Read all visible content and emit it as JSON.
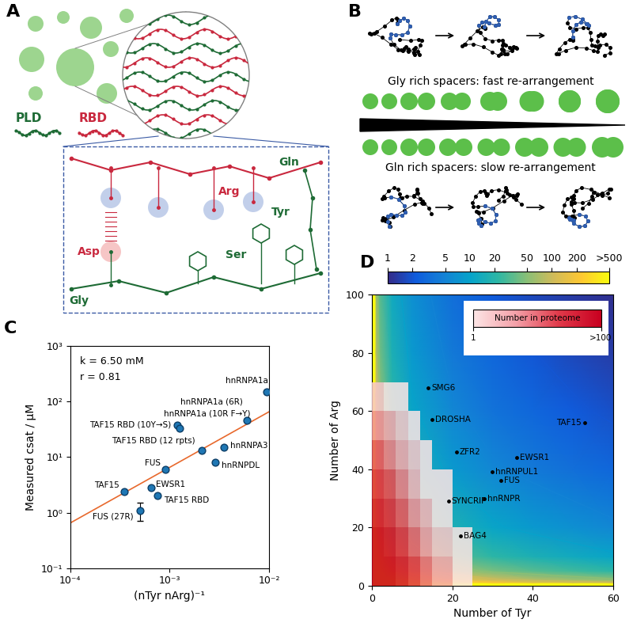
{
  "panels": {
    "A": {
      "label": "A",
      "pld": "PLD",
      "rbd": "RBD",
      "arg": "Arg",
      "tyr": "Tyr",
      "gln": "Gln",
      "asp": "Asp",
      "ser": "Ser",
      "gly": "Gly"
    },
    "B": {
      "label": "B",
      "fast": "Gly rich spacers: fast re-arrangement",
      "slow": "Gln rich spacers: slow re-arrangement"
    }
  },
  "chart_data": [
    {
      "label": "C",
      "type": "scatter",
      "log": true,
      "xlabel": "(nTyr nArg)⁻¹",
      "ylabel": "Measured csat / μM",
      "annotations": [
        "k = 6.50 mM",
        "r = 0.81"
      ],
      "names": [
        "hnRNPA1a",
        "hnRNPA1a (6R)",
        "hnRNPA3",
        "hnRNPDL",
        "TAF15 RBD (12 rpts)",
        "TAF15 RBD (10Y→S)",
        "hnRNPA1a (10R F→Y)",
        "FUS",
        "EWSR1",
        "TAF15 RBD",
        "TAF15",
        "FUS (27R)"
      ],
      "x": [
        0.0095,
        0.006,
        0.0035,
        0.0029,
        0.0021,
        0.0012,
        0.00125,
        0.0009,
        0.00065,
        0.00075,
        0.00035,
        0.0005
      ],
      "values": [
        150,
        45,
        15,
        8,
        13,
        38,
        33,
        6,
        2.8,
        2.0,
        2.4,
        1.1
      ],
      "yerr": [
        null,
        null,
        null,
        null,
        null,
        null,
        null,
        null,
        null,
        null,
        null,
        [
          0.4,
          0.4
        ]
      ],
      "color": "#1f77b4",
      "fit": {
        "x": [
          0.0001,
          0.01
        ],
        "values": [
          0.65,
          65
        ],
        "color": "#e8692d"
      },
      "xlim": [
        0.0001,
        0.01
      ],
      "ylim": [
        0.1,
        1000
      ],
      "xticks": [
        {
          "value": 0.0001,
          "label": "10⁻⁴"
        },
        {
          "value": 0.001,
          "label": "10⁻³"
        },
        {
          "value": 0.01,
          "label": "10⁻²"
        }
      ],
      "yticks": [
        {
          "value": 0.1,
          "label": "10⁻¹"
        },
        {
          "value": 1,
          "label": "10⁰"
        },
        {
          "value": 10,
          "label": "10¹"
        },
        {
          "value": 100,
          "label": "10²"
        },
        {
          "value": 1000,
          "label": "10³"
        }
      ]
    },
    {
      "label": "D",
      "type": "heatmap",
      "xlabel": "Number of Tyr",
      "ylabel": "Number of Arg",
      "x": [
        1,
        2,
        5,
        10,
        20,
        30,
        40,
        50,
        60
      ],
      "y": [
        1,
        2,
        5,
        10,
        20,
        40,
        60,
        80,
        100
      ],
      "cells": [
        [
          6500,
          3250,
          1300,
          650,
          325,
          216.7,
          162.5,
          130,
          108.3
        ],
        [
          3250,
          1625,
          650,
          325,
          162.5,
          108.3,
          81.25,
          65,
          54.17
        ],
        [
          1300,
          650,
          260,
          130,
          65,
          43.33,
          32.5,
          26,
          21.67
        ],
        [
          650,
          325,
          130,
          65,
          32.5,
          21.67,
          16.25,
          13,
          10.83
        ],
        [
          325,
          162.5,
          65,
          32.5,
          16.25,
          10.83,
          8.125,
          6.5,
          5.417
        ],
        [
          162.5,
          81.25,
          32.5,
          16.25,
          8.125,
          5.417,
          4.063,
          3.25,
          2.708
        ],
        [
          108.3,
          54.17,
          21.67,
          10.83,
          5.417,
          3.611,
          2.708,
          2.167,
          1.806
        ],
        [
          81.25,
          40.63,
          16.25,
          8.125,
          4.063,
          2.708,
          2.031,
          1.625,
          1.354
        ],
        [
          65,
          32.5,
          13,
          6.5,
          3.25,
          2.167,
          1.625,
          1.3,
          1.083
        ]
      ],
      "colorbar": {
        "range": [
          1,
          500
        ],
        "ticks": [
          1,
          2,
          5,
          10,
          20,
          50,
          100,
          200,
          {
            "value": 500,
            "label": ">500"
          }
        ]
      },
      "proteome": {
        "title": "Number in proteome",
        "x_bins": [
          0,
          3,
          6,
          9,
          12,
          15,
          20,
          25,
          30
        ],
        "y_bins": [
          0,
          10,
          20,
          30,
          40,
          50,
          60,
          70
        ],
        "counts": [
          [
            150,
            120,
            60,
            25,
            10,
            4,
            1,
            0
          ],
          [
            110,
            70,
            30,
            12,
            5,
            2,
            1,
            0
          ],
          [
            60,
            35,
            15,
            6,
            3,
            1,
            0,
            0
          ],
          [
            30,
            18,
            8,
            3,
            1,
            1,
            0,
            0
          ],
          [
            15,
            8,
            4,
            2,
            1,
            0,
            0,
            0
          ],
          [
            6,
            4,
            2,
            1,
            0,
            0,
            0,
            0
          ],
          [
            2,
            1,
            1,
            0,
            0,
            0,
            0,
            0
          ]
        ],
        "range": [
          1,
          100
        ],
        "ticks": [
          1,
          {
            "value": 100,
            "label": ">100"
          }
        ]
      },
      "points": {
        "names": [
          "SMG6",
          "DROSHA",
          "ZFR2",
          "EWSR1",
          "hnRNPUL1",
          "FUS",
          "TAF15",
          "hnRNPR",
          "SYNCRIP",
          "BAG4"
        ],
        "x": [
          14,
          15,
          21,
          36,
          30,
          32,
          53,
          28,
          19,
          22
        ],
        "y": [
          68,
          57,
          46,
          44,
          39,
          36,
          56,
          30,
          29,
          17
        ]
      },
      "xlim": [
        0,
        60
      ],
      "ylim": [
        0,
        100
      ],
      "xticks": [
        0,
        20,
        40,
        60
      ],
      "yticks": [
        0,
        20,
        40,
        60,
        80,
        100
      ]
    }
  ]
}
